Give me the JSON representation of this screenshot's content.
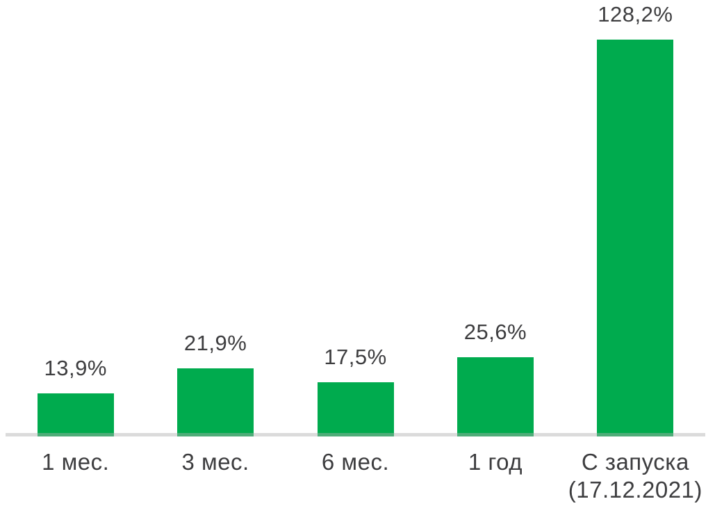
{
  "chart_data": {
    "type": "bar",
    "title": "",
    "categories": [
      "1 мес.",
      "3 мес.",
      "6 мес.",
      "1 год",
      "С запуска (17.12.2021)"
    ],
    "values": [
      13.9,
      21.9,
      17.5,
      25.6,
      128.2
    ],
    "value_labels": [
      "13,9%",
      "21,9%",
      "17,5%",
      "25,6%",
      "128,2%"
    ],
    "category_label_lines": [
      [
        "1 мес."
      ],
      [
        "3 мес."
      ],
      [
        "6 мес."
      ],
      [
        "1 год"
      ],
      [
        "С запуска",
        "(17.12.2021)"
      ]
    ],
    "unit": "%",
    "xlabel": "",
    "ylabel": "",
    "ylim": [
      0,
      140
    ],
    "grid": false,
    "legend": false,
    "bar_color": "#00AB4E",
    "baseline_color": "#E0E0E0",
    "text_color": "#3D3D3F",
    "background_color": "#FFFFFF"
  }
}
